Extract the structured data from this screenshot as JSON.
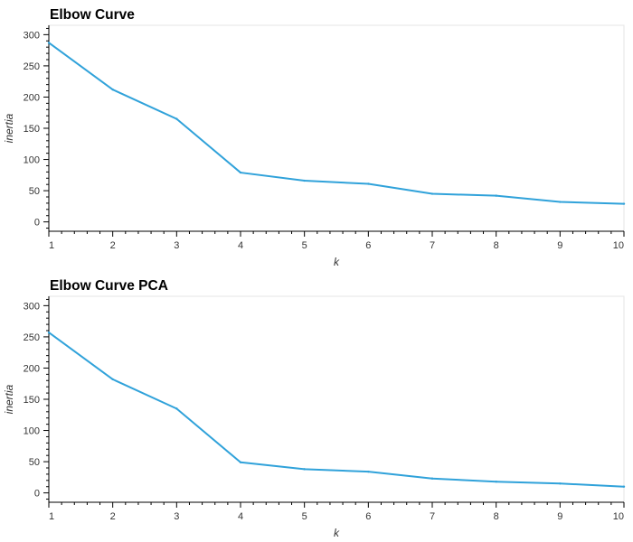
{
  "chart_data": [
    {
      "type": "line",
      "title": "Elbow Curve",
      "xlabel": "k",
      "ylabel": "inertia",
      "x": [
        1,
        2,
        3,
        4,
        5,
        6,
        7,
        8,
        9,
        10
      ],
      "xticks": [
        "1",
        "2",
        "3",
        "4",
        "5",
        "6",
        "7",
        "8",
        "9",
        "10"
      ],
      "yticks": [
        "0",
        "50",
        "100",
        "150",
        "200",
        "250",
        "300"
      ],
      "xlim": [
        1,
        10
      ],
      "ylim": [
        -15,
        315
      ],
      "grid": false,
      "color": "#30a2da",
      "series": [
        {
          "values": [
            287,
            212,
            165,
            79,
            66,
            61,
            45,
            42,
            32,
            29
          ]
        }
      ]
    },
    {
      "type": "line",
      "title": "Elbow Curve PCA",
      "xlabel": "k",
      "ylabel": "inertia",
      "x": [
        1,
        2,
        3,
        4,
        5,
        6,
        7,
        8,
        9,
        10
      ],
      "xticks": [
        "1",
        "2",
        "3",
        "4",
        "5",
        "6",
        "7",
        "8",
        "9",
        "10"
      ],
      "yticks": [
        "0",
        "50",
        "100",
        "150",
        "200",
        "250",
        "300"
      ],
      "xlim": [
        1,
        10
      ],
      "ylim": [
        -15,
        315
      ],
      "grid": false,
      "color": "#30a2da",
      "series": [
        {
          "values": [
            257,
            182,
            135,
            49,
            38,
            34,
            23,
            18,
            15,
            10
          ]
        }
      ]
    }
  ]
}
